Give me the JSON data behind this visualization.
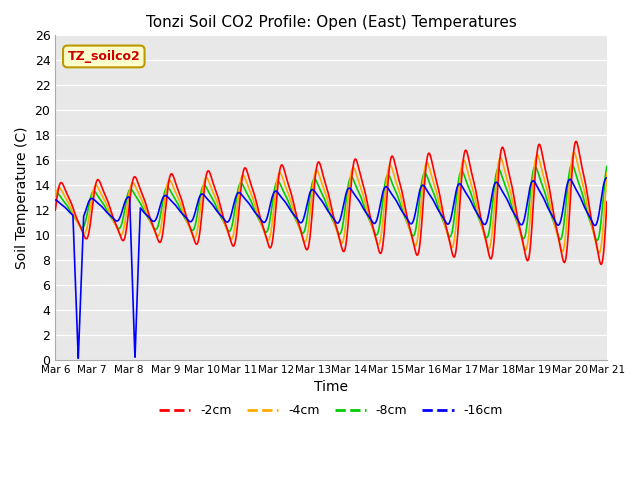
{
  "title": "Tonzi Soil CO2 Profile: Open (East) Temperatures",
  "xlabel": "Time",
  "ylabel": "Soil Temperature (C)",
  "ylim": [
    0,
    26
  ],
  "xlim": [
    0,
    360
  ],
  "bg_color": "#e8e8e8",
  "legend_label": "TZ_soilco2",
  "series_labels": [
    "-2cm",
    "-4cm",
    "-8cm",
    "-16cm"
  ],
  "series_colors": [
    "#ff0000",
    "#ffaa00",
    "#00cc00",
    "#0000ff"
  ],
  "xtick_labels": [
    "Mar 6",
    "Mar 7",
    "Mar 8",
    "Mar 9",
    "Mar 10",
    "Mar 11",
    "Mar 12",
    "Mar 13",
    "Mar 14",
    "Mar 15",
    "Mar 16",
    "Mar 17",
    "Mar 18",
    "Mar 19",
    "Mar 20",
    "Mar 21"
  ],
  "n_days": 15,
  "base_temp": 12.0,
  "base_slope": 0.045,
  "amp_start": 2.5,
  "amp_slope": 0.22,
  "phase_2cm": 0.0,
  "phase_4cm": 0.35,
  "phase_8cm": 0.7,
  "phase_16cm": 1.05,
  "amp_scale_4cm": 0.82,
  "amp_scale_8cm": 0.62,
  "amp_scale_16cm": 0.38
}
